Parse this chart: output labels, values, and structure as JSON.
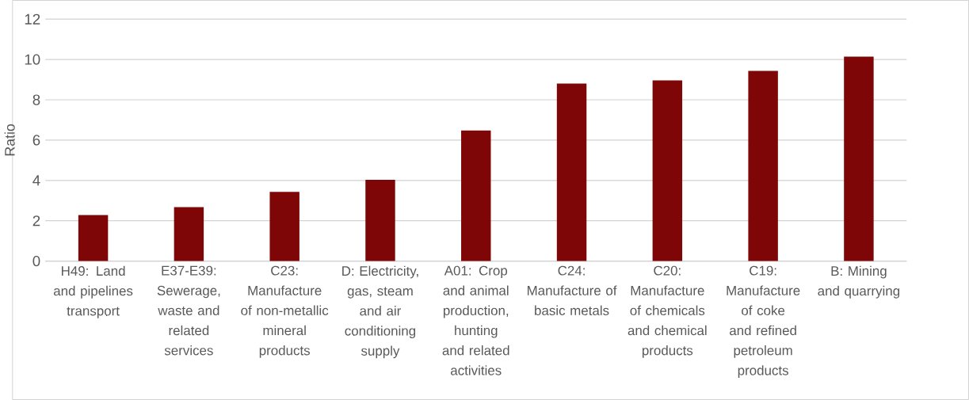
{
  "chart_data": {
    "type": "bar",
    "ylabel": "Ratio",
    "categories": [
      "H49: Land and pipelines transport",
      "E37-E39: Sewerage, waste and related services",
      "C23: Manufacture of non-metallic mineral products",
      "D: Electricity, gas, steam and air conditioning supply",
      "A01: Crop and animal production, hunting and related activities",
      "C24: Manufacture of basic metals",
      "C20: Manufacture of chemicals and chemical products",
      "C19: Manufacture of coke and refined petroleum products",
      "B: Mining and quarrying"
    ],
    "values": [
      2.28,
      2.68,
      3.43,
      4.03,
      6.48,
      8.81,
      8.96,
      9.43,
      10.14
    ],
    "color": "#7f0606",
    "ylim": [
      0,
      12
    ],
    "yticks": [
      0,
      2,
      4,
      6,
      8,
      10,
      12
    ],
    "grid": "y"
  }
}
